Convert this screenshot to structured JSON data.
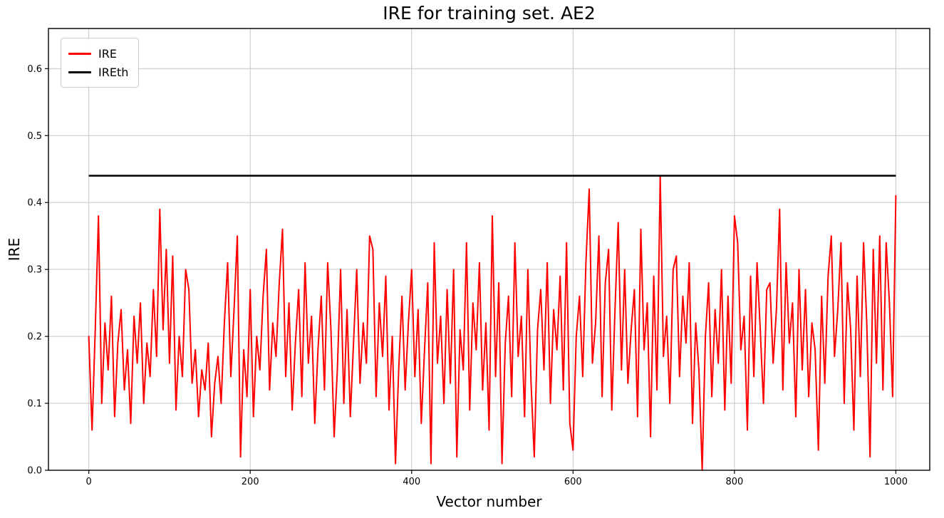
{
  "chart_data": {
    "type": "line",
    "title": "IRE for training set. AE2",
    "xlabel": "Vector number",
    "ylabel": "IRE",
    "xlim": [
      -50,
      1042
    ],
    "ylim": [
      0,
      0.66
    ],
    "xticks": [
      0,
      200,
      400,
      600,
      800,
      1000
    ],
    "yticks": [
      0.0,
      0.1,
      0.2,
      0.3,
      0.4,
      0.5,
      0.6
    ],
    "grid": true,
    "grid_color": "#c6c6c6",
    "legend": {
      "position": "upper-left",
      "entries": [
        {
          "label": "IRE",
          "color": "#ff0000"
        },
        {
          "label": "IREth",
          "color": "#000000"
        }
      ]
    },
    "series": [
      {
        "name": "IRE",
        "color": "#ff0000",
        "linewidth": 2,
        "x_start": 0,
        "x_step": 4,
        "values": [
          0.2,
          0.06,
          0.21,
          0.38,
          0.1,
          0.22,
          0.15,
          0.26,
          0.08,
          0.19,
          0.24,
          0.12,
          0.18,
          0.07,
          0.23,
          0.16,
          0.25,
          0.1,
          0.19,
          0.14,
          0.27,
          0.17,
          0.39,
          0.21,
          0.33,
          0.16,
          0.32,
          0.09,
          0.2,
          0.14,
          0.3,
          0.27,
          0.13,
          0.18,
          0.08,
          0.15,
          0.12,
          0.19,
          0.05,
          0.13,
          0.17,
          0.1,
          0.22,
          0.31,
          0.14,
          0.24,
          0.35,
          0.02,
          0.18,
          0.11,
          0.27,
          0.08,
          0.2,
          0.15,
          0.26,
          0.33,
          0.12,
          0.22,
          0.17,
          0.28,
          0.36,
          0.14,
          0.25,
          0.09,
          0.19,
          0.27,
          0.11,
          0.31,
          0.16,
          0.23,
          0.07,
          0.18,
          0.26,
          0.12,
          0.31,
          0.21,
          0.05,
          0.15,
          0.3,
          0.1,
          0.24,
          0.08,
          0.19,
          0.3,
          0.13,
          0.22,
          0.16,
          0.35,
          0.33,
          0.11,
          0.25,
          0.17,
          0.29,
          0.09,
          0.2,
          0.01,
          0.15,
          0.26,
          0.12,
          0.22,
          0.3,
          0.14,
          0.24,
          0.07,
          0.18,
          0.28,
          0.01,
          0.34,
          0.16,
          0.23,
          0.1,
          0.27,
          0.13,
          0.3,
          0.02,
          0.21,
          0.15,
          0.34,
          0.09,
          0.25,
          0.18,
          0.31,
          0.12,
          0.22,
          0.06,
          0.38,
          0.14,
          0.28,
          0.01,
          0.19,
          0.26,
          0.11,
          0.34,
          0.17,
          0.23,
          0.08,
          0.3,
          0.13,
          0.02,
          0.21,
          0.27,
          0.15,
          0.31,
          0.1,
          0.24,
          0.18,
          0.29,
          0.12,
          0.34,
          0.07,
          0.03,
          0.2,
          0.26,
          0.14,
          0.31,
          0.42,
          0.16,
          0.22,
          0.35,
          0.11,
          0.28,
          0.33,
          0.09,
          0.24,
          0.37,
          0.15,
          0.3,
          0.13,
          0.21,
          0.27,
          0.08,
          0.36,
          0.18,
          0.25,
          0.05,
          0.29,
          0.12,
          0.44,
          0.17,
          0.23,
          0.1,
          0.3,
          0.32,
          0.14,
          0.26,
          0.19,
          0.31,
          0.07,
          0.22,
          0.15,
          0.0,
          0.2,
          0.28,
          0.11,
          0.24,
          0.16,
          0.3,
          0.09,
          0.26,
          0.13,
          0.38,
          0.34,
          0.18,
          0.23,
          0.06,
          0.29,
          0.14,
          0.31,
          0.21,
          0.1,
          0.27,
          0.28,
          0.16,
          0.24,
          0.39,
          0.12,
          0.31,
          0.19,
          0.25,
          0.08,
          0.3,
          0.15,
          0.27,
          0.11,
          0.22,
          0.18,
          0.03,
          0.26,
          0.13,
          0.29,
          0.35,
          0.17,
          0.24,
          0.34,
          0.1,
          0.28,
          0.21,
          0.06,
          0.29,
          0.14,
          0.34,
          0.22,
          0.02,
          0.33,
          0.16,
          0.35,
          0.12,
          0.34,
          0.25,
          0.11,
          0.41
        ]
      },
      {
        "name": "IREth",
        "color": "#000000",
        "linewidth": 2.5,
        "type": "hline",
        "y": 0.44,
        "x_range": [
          0,
          1000
        ]
      }
    ]
  }
}
